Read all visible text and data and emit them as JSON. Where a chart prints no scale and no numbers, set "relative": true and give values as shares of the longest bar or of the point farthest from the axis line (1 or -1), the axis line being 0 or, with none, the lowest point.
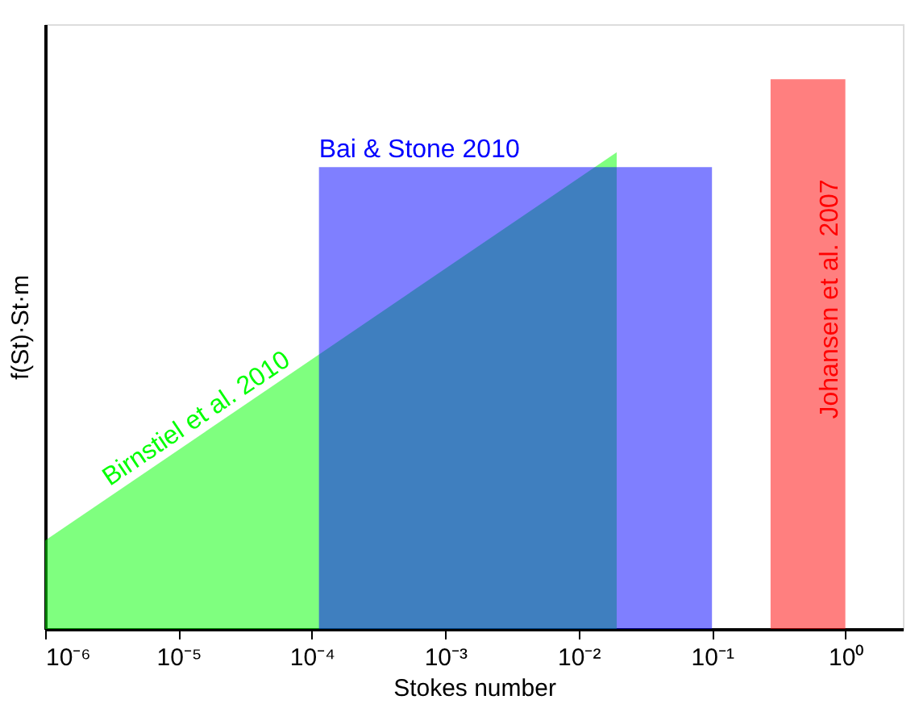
{
  "chart_data": {
    "type": "area",
    "relative": true,
    "xlabel": "Stokes number",
    "ylabel": "f(St)·St·m",
    "log": "x",
    "xlim": [
      1e-06,
      2.7
    ],
    "xticks": [
      {
        "value": 1e-06,
        "label": "10⁻⁶"
      },
      {
        "value": 1e-05,
        "label": "10⁻⁵"
      },
      {
        "value": 0.0001,
        "label": "10⁻⁴"
      },
      {
        "value": 0.001,
        "label": "10⁻³"
      },
      {
        "value": 0.01,
        "label": "10⁻²"
      },
      {
        "value": 0.1,
        "label": "10⁻¹"
      },
      {
        "value": 1,
        "label": "10⁰"
      }
    ],
    "grid": false,
    "series": [
      {
        "name": "Birnstiel et al. 2010",
        "color": "#00ff00",
        "x": [
          1e-06,
          0.0193,
          0.0193
        ],
        "values": [
          0.161,
          0.867,
          0
        ]
      },
      {
        "name": "Bai & Stone 2010",
        "color": "#0000ff",
        "x": [
          0.000113,
          0.1
        ],
        "values": [
          0.84,
          0.84
        ]
      },
      {
        "name": "Johansen et al. 2007",
        "color": "#ff0000",
        "x": [
          0.275,
          1
        ],
        "values": [
          1,
          1
        ]
      }
    ]
  }
}
